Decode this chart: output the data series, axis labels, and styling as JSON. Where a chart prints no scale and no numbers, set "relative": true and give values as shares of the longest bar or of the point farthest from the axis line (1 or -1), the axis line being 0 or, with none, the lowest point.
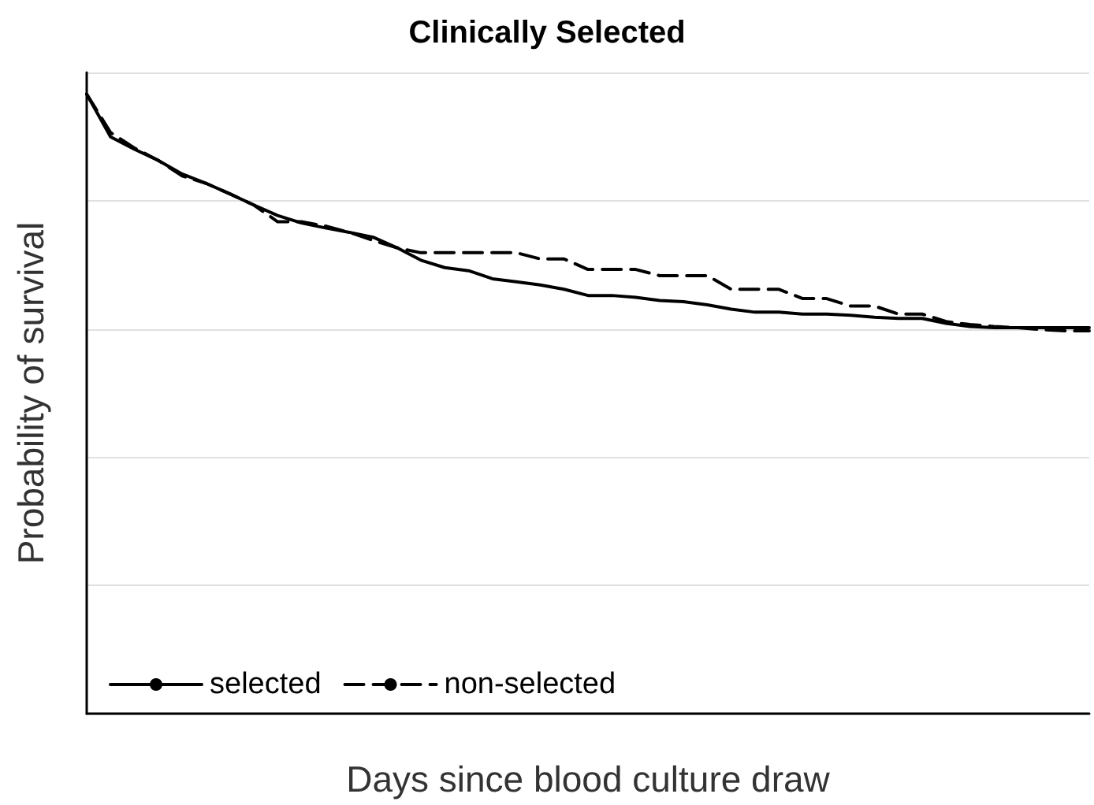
{
  "chart_data": {
    "type": "line",
    "title": "Clinically Selected",
    "xlabel": "Days since blood culture draw",
    "ylabel": "Probability of survival",
    "relative": true,
    "grid": "y",
    "legend": "bottom left",
    "marker": "none",
    "categories": [
      null,
      null,
      null,
      null,
      null,
      null,
      null,
      null,
      null,
      null,
      null,
      null,
      null,
      null,
      null,
      null,
      null,
      null,
      null,
      null,
      null,
      null,
      null,
      null,
      null,
      null,
      null,
      null,
      null,
      null,
      null,
      null,
      null,
      null,
      null,
      null,
      null,
      null,
      null,
      null,
      null,
      null,
      null
    ],
    "series": [
      {
        "name": "selected",
        "color": "#000000",
        "line_style": "solid",
        "values": [
          1.0,
          0.931,
          0.911,
          0.893,
          0.871,
          0.856,
          0.839,
          0.821,
          0.804,
          0.792,
          0.784,
          0.777,
          0.769,
          0.752,
          0.732,
          0.72,
          0.715,
          0.702,
          0.697,
          0.692,
          0.685,
          0.675,
          0.675,
          0.672,
          0.667,
          0.665,
          0.66,
          0.653,
          0.648,
          0.648,
          0.645,
          0.645,
          0.643,
          0.64,
          0.638,
          0.638,
          0.63,
          0.625,
          0.623,
          0.623,
          0.623,
          0.623,
          0.623
        ]
      },
      {
        "name": "non-selected",
        "color": "#000000",
        "line_style": "dashed",
        "values": [
          1.0,
          0.938,
          0.913,
          0.893,
          0.868,
          0.856,
          0.839,
          0.821,
          0.794,
          0.794,
          0.787,
          0.777,
          0.764,
          0.752,
          0.744,
          0.744,
          0.744,
          0.744,
          0.744,
          0.734,
          0.734,
          0.717,
          0.717,
          0.717,
          0.707,
          0.707,
          0.707,
          0.685,
          0.685,
          0.685,
          0.67,
          0.67,
          0.658,
          0.658,
          0.645,
          0.645,
          0.633,
          0.628,
          0.625,
          0.623,
          0.62,
          0.618,
          0.618
        ]
      }
    ]
  }
}
